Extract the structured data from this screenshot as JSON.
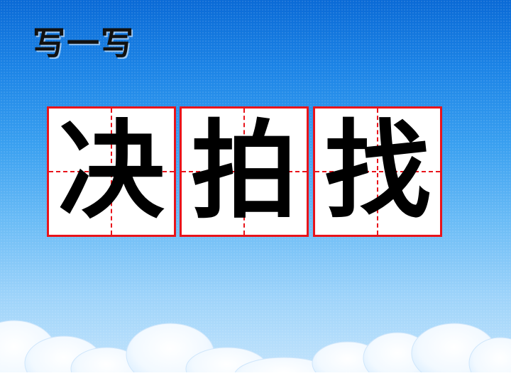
{
  "title": "写一写",
  "characters": [
    {
      "char": "决"
    },
    {
      "char": "拍"
    },
    {
      "char": "找"
    }
  ],
  "colors": {
    "grid_red": "#e8141b",
    "sky_top": "#0a6ad6",
    "sky_bottom": "#c8e6fc",
    "glyph": "#000000"
  }
}
